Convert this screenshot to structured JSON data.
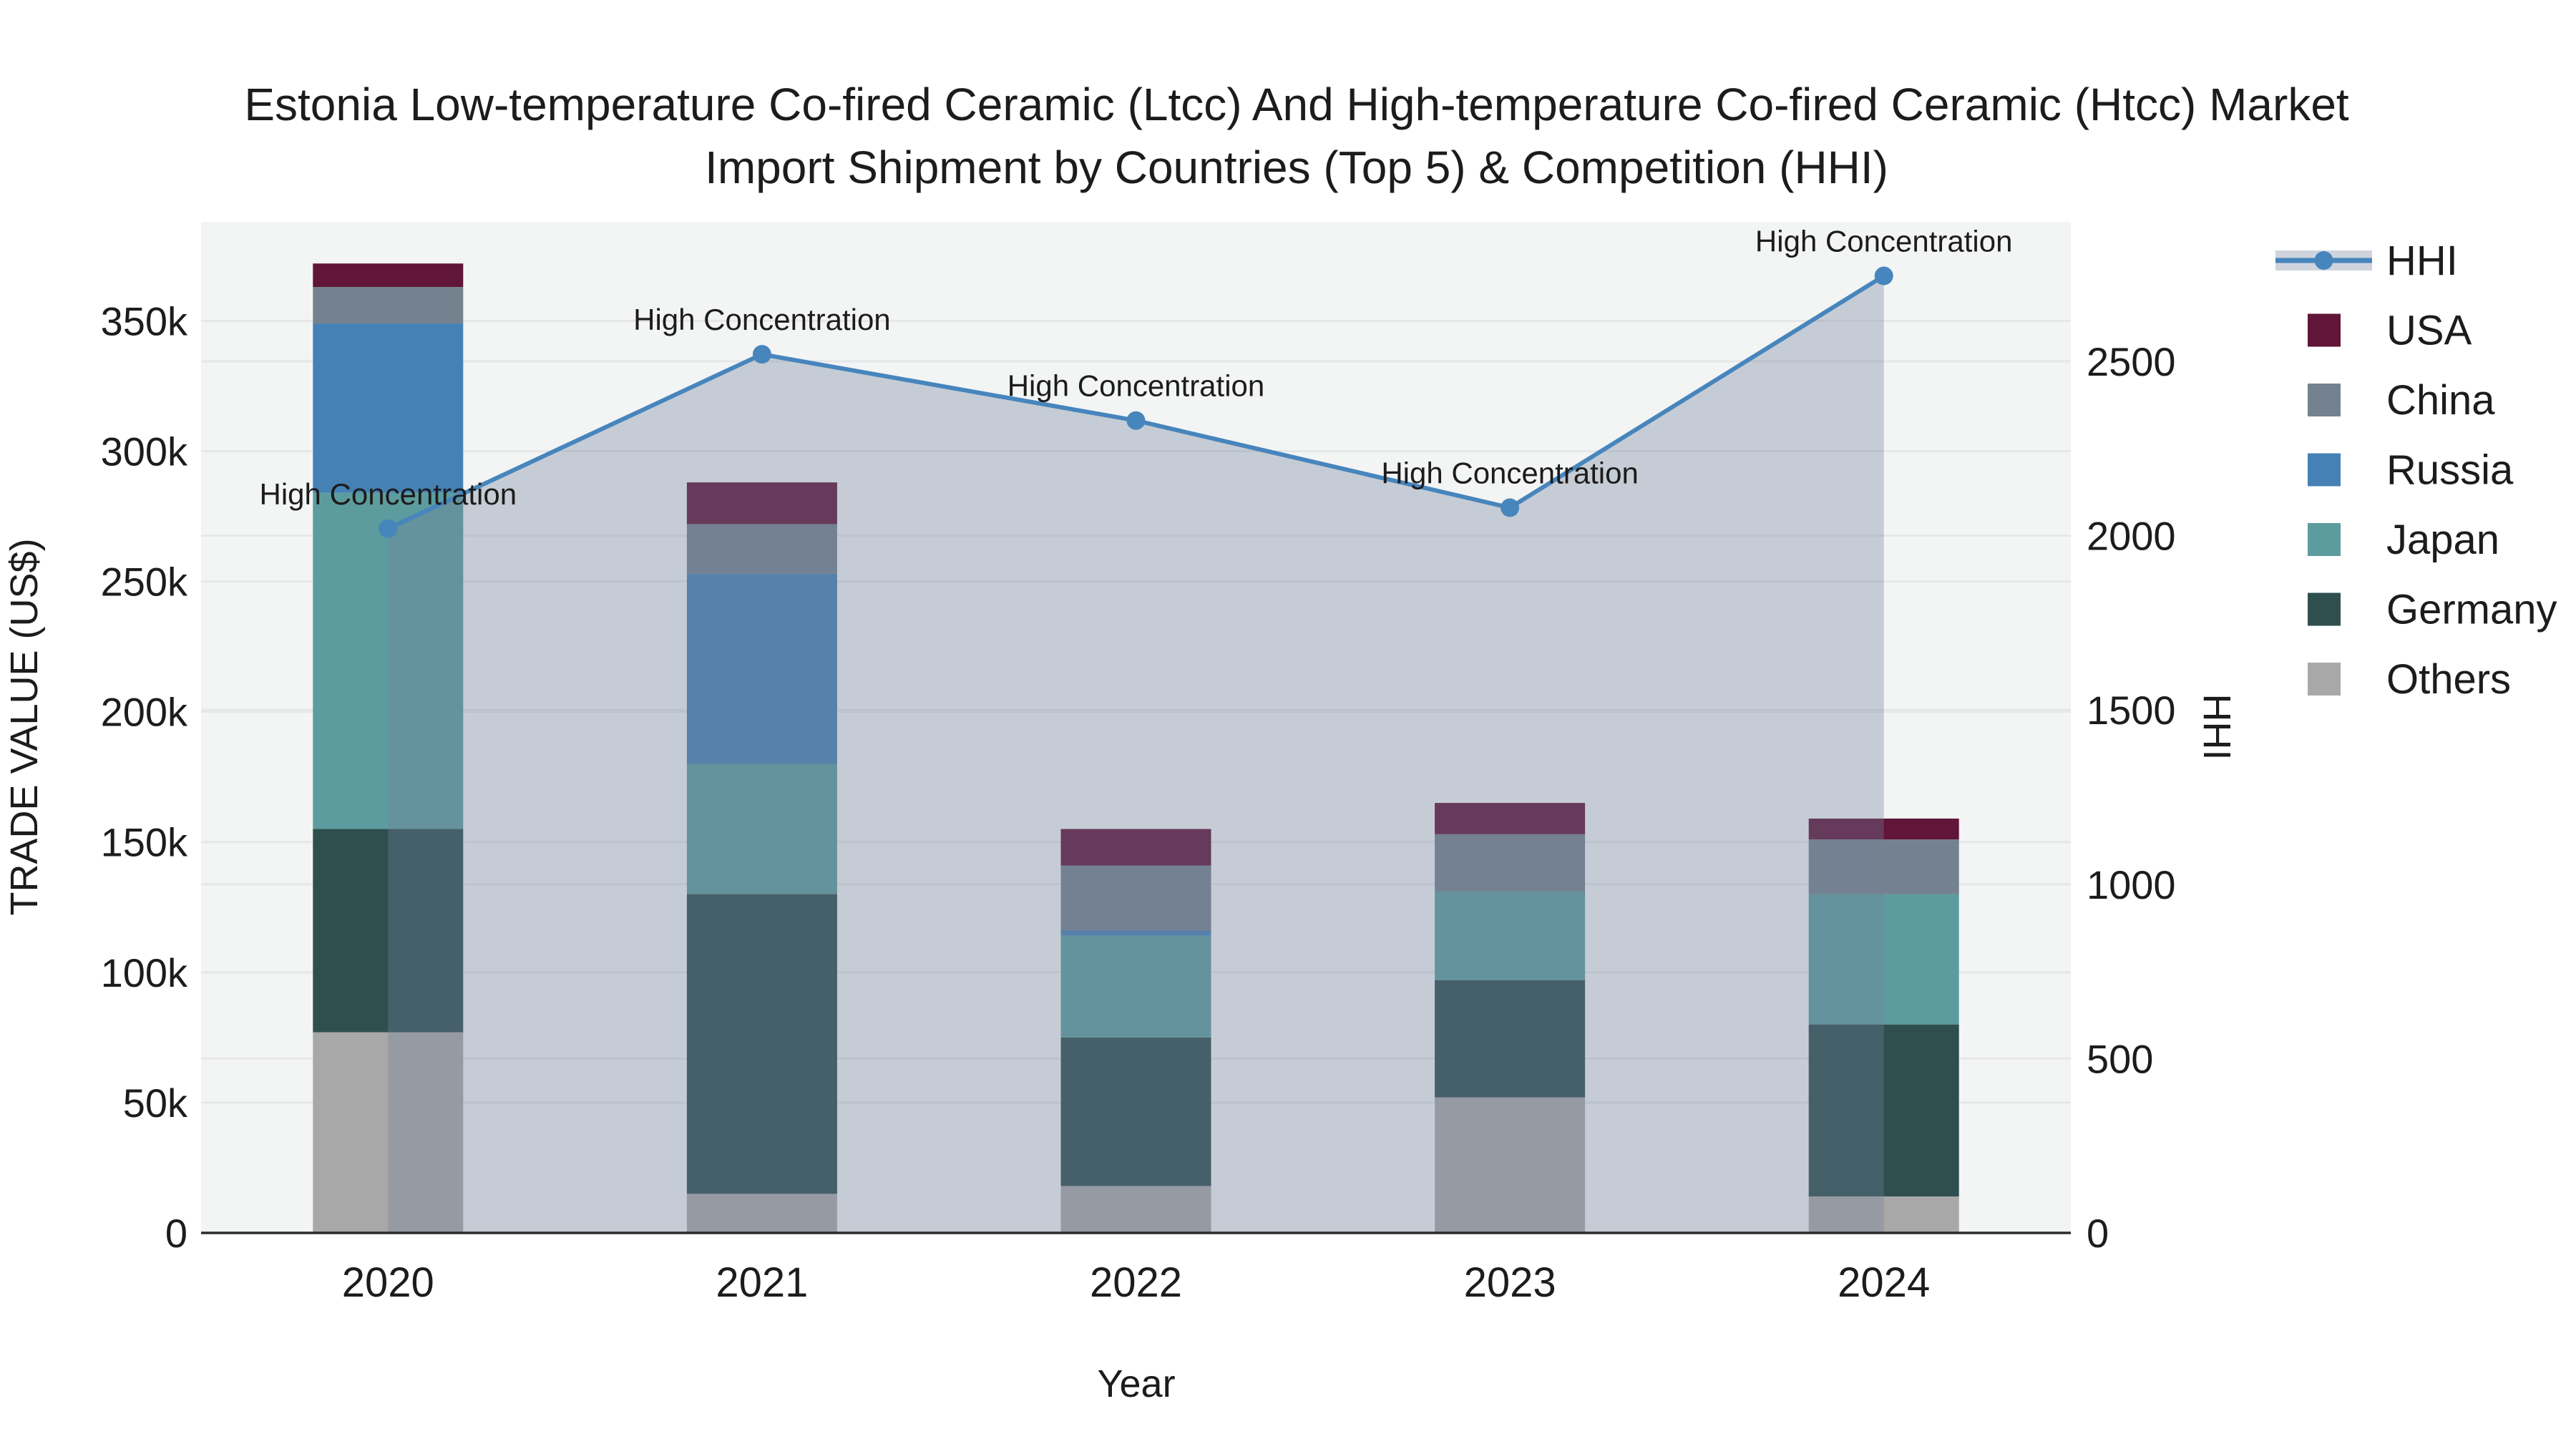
{
  "title": {
    "line1": "Estonia Low-temperature Co-fired Ceramic (Ltcc) And High-temperature Co-fired Ceramic (Htcc) Market",
    "line2": "Import Shipment by Countries (Top 5) & Competition (HHI)"
  },
  "axes": {
    "x_title": "Year",
    "y_left_title": "TRADE VALUE (US$)",
    "y_right_title": "HHI",
    "y_left_ticks": [
      {
        "value": 0,
        "label": "0"
      },
      {
        "value": 50000,
        "label": "50k"
      },
      {
        "value": 100000,
        "label": "100k"
      },
      {
        "value": 150000,
        "label": "150k"
      },
      {
        "value": 200000,
        "label": "200k"
      },
      {
        "value": 250000,
        "label": "250k"
      },
      {
        "value": 300000,
        "label": "300k"
      },
      {
        "value": 350000,
        "label": "350k"
      }
    ],
    "y_right_ticks": [
      {
        "value": 0,
        "label": "0"
      },
      {
        "value": 500,
        "label": "500"
      },
      {
        "value": 1000,
        "label": "1000"
      },
      {
        "value": 1500,
        "label": "1500"
      },
      {
        "value": 2000,
        "label": "2000"
      },
      {
        "value": 2500,
        "label": "2500"
      }
    ]
  },
  "colors": {
    "usa": "#601539",
    "china": "#74828F",
    "russia": "#4581B4",
    "japan": "#5D9C9E",
    "germany": "#2F4F4F",
    "others": "#A8A8A8",
    "hhi_line": "#4785BD",
    "hhi_area": "rgba(116,130,155,0.35)",
    "plot_bg": "#F3F4F4",
    "grid": "#E5E7E9",
    "axis_line": "#2B2B2B",
    "text": "#1C1C1C"
  },
  "legend": {
    "items": [
      {
        "label": "HHI",
        "type": "line",
        "color_key": "hhi_line"
      },
      {
        "label": "USA",
        "type": "swatch",
        "color_key": "usa"
      },
      {
        "label": "China",
        "type": "swatch",
        "color_key": "china"
      },
      {
        "label": "Russia",
        "type": "swatch",
        "color_key": "russia"
      },
      {
        "label": "Japan",
        "type": "swatch",
        "color_key": "japan"
      },
      {
        "label": "Germany",
        "type": "swatch",
        "color_key": "germany"
      },
      {
        "label": "Others",
        "type": "swatch",
        "color_key": "others"
      }
    ]
  },
  "chart_data": {
    "type": [
      "bar",
      "line"
    ],
    "title": "Estonia Low-temperature Co-fired Ceramic (Ltcc) And High-temperature Co-fired Ceramic (Htcc) Market Import Shipment by Countries (Top 5) & Competition (HHI)",
    "xlabel": "Year",
    "ylabel_left": "TRADE VALUE (US$)",
    "ylabel_right": "HHI",
    "categories": [
      "2020",
      "2021",
      "2022",
      "2023",
      "2024"
    ],
    "stack_order_bottom_to_top": [
      "Others",
      "Germany",
      "Japan",
      "Russia",
      "China",
      "USA"
    ],
    "series": [
      {
        "name": "USA",
        "color_key": "usa",
        "values": [
          9000,
          16000,
          14000,
          12000,
          8000
        ]
      },
      {
        "name": "China",
        "color_key": "china",
        "values": [
          14000,
          19000,
          25000,
          22000,
          21000
        ]
      },
      {
        "name": "Russia",
        "color_key": "russia",
        "values": [
          65000,
          73000,
          2000,
          0,
          0
        ]
      },
      {
        "name": "Japan",
        "color_key": "japan",
        "values": [
          129000,
          50000,
          39000,
          34000,
          50000
        ]
      },
      {
        "name": "Germany",
        "color_key": "germany",
        "values": [
          78000,
          115000,
          57000,
          45000,
          66000
        ]
      },
      {
        "name": "Others",
        "color_key": "others",
        "values": [
          77000,
          15000,
          18000,
          52000,
          14000
        ]
      }
    ],
    "bar_totals": [
      372000,
      288000,
      155000,
      165000,
      159000
    ],
    "hhi": {
      "name": "HHI",
      "values": [
        2020,
        2520,
        2330,
        2080,
        2745
      ],
      "annotations": [
        "High Concentration",
        "High Concentration",
        "High Concentration",
        "High Concentration",
        "High Concentration"
      ]
    },
    "ylim_left": [
      0,
      388000
    ],
    "ylim_right": [
      0,
      2900
    ],
    "grid": true,
    "legend_position": "right"
  }
}
